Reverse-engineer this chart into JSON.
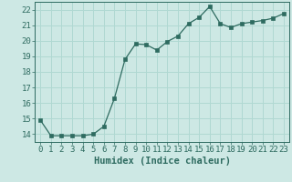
{
  "x": [
    0,
    1,
    2,
    3,
    4,
    5,
    6,
    7,
    8,
    9,
    10,
    11,
    12,
    13,
    14,
    15,
    16,
    17,
    18,
    19,
    20,
    21,
    22,
    23
  ],
  "y": [
    14.9,
    13.9,
    13.9,
    13.9,
    13.9,
    14.0,
    14.5,
    16.3,
    18.8,
    19.8,
    19.75,
    19.4,
    19.95,
    20.3,
    21.1,
    21.5,
    22.2,
    21.1,
    20.85,
    21.1,
    21.2,
    21.3,
    21.45,
    21.75
  ],
  "bg_color": "#cde8e4",
  "grid_color": "#b0d8d2",
  "line_color": "#2e6b60",
  "marker_color": "#2e6b60",
  "xlabel": "Humidex (Indice chaleur)",
  "xlabel_fontsize": 7.5,
  "tick_fontsize": 6.5,
  "ylim": [
    13.5,
    22.5
  ],
  "yticks": [
    14,
    15,
    16,
    17,
    18,
    19,
    20,
    21,
    22
  ],
  "xlim": [
    -0.5,
    23.5
  ],
  "xtick_labels": [
    "0",
    "1",
    "2",
    "3",
    "4",
    "5",
    "6",
    "7",
    "8",
    "9",
    "10",
    "11",
    "12",
    "13",
    "14",
    "15",
    "16",
    "17",
    "18",
    "19",
    "20",
    "21",
    "22",
    "23"
  ]
}
